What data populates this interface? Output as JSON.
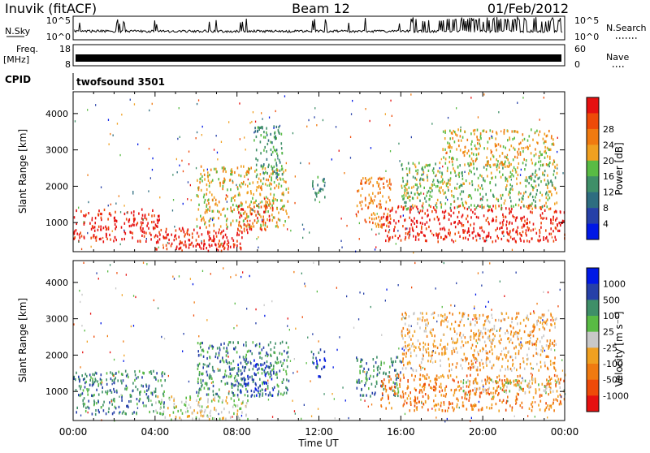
{
  "header": {
    "station": "Inuvik (fitACF)",
    "beam": "Beam 12",
    "date": "01/Feb/2012"
  },
  "status_panels": {
    "nsky_label": "N.Sky",
    "nsky_ticks": [
      "10^5",
      "10^0"
    ],
    "nsearch_label": "N.Search",
    "nsearch_ticks": [
      "10^5",
      "10^0"
    ],
    "freq_label": "Freq.",
    "freq_unit": "[MHz]",
    "freq_ticks": [
      "18",
      "8"
    ],
    "nave_label": "Nave",
    "nave_ticks": [
      "60",
      "0"
    ],
    "cpid_label": "CPID",
    "cpid_value": "twofsound 3501"
  },
  "colors": {
    "power": [
      "#0018e6",
      "#2640a8",
      "#2e6d80",
      "#3f8f68",
      "#59bb44",
      "#f0a020",
      "#f07a10",
      "#ee4a08",
      "#e61010"
    ],
    "velocity": [
      "#e61010",
      "#ee4a08",
      "#f07a10",
      "#f0a020",
      "#c8c8c8",
      "#59bb44",
      "#3f8f68",
      "#2640a8",
      "#0018e6"
    ]
  },
  "chart_data": [
    {
      "type": "heatmap",
      "name": "power",
      "ylabel": "Slant Range [km]",
      "xlabel": "",
      "x_ticks": [
        "00:00",
        "04:00",
        "08:00",
        "12:00",
        "16:00",
        "20:00",
        "00:00"
      ],
      "y_ticks": [
        "1000",
        "2000",
        "3000",
        "4000"
      ],
      "ylim": [
        200,
        4600
      ],
      "xlim_hours": [
        0,
        24
      ],
      "colorbar_label": "Power [dB]",
      "colorbar_ticks": [
        "4",
        "8",
        "12",
        "16",
        "20",
        "24",
        "28"
      ],
      "regions": [
        {
          "t0": 0.0,
          "t1": 4.2,
          "r0": 500,
          "r1": 1400,
          "level": 8
        },
        {
          "t0": 4.0,
          "t1": 8.5,
          "r0": 300,
          "r1": 900,
          "level": 8
        },
        {
          "t0": 5.0,
          "t1": 7.6,
          "r0": 250,
          "r1": 550,
          "level": 8
        },
        {
          "t0": 6.0,
          "t1": 10.5,
          "r0": 900,
          "r1": 2600,
          "level": 5
        },
        {
          "t0": 8.0,
          "t1": 9.8,
          "r0": 800,
          "r1": 1500,
          "level": 7
        },
        {
          "t0": 8.8,
          "t1": 10.2,
          "r0": 2200,
          "r1": 3700,
          "level": 3
        },
        {
          "t0": 11.6,
          "t1": 12.3,
          "r0": 1600,
          "r1": 2300,
          "level": 3
        },
        {
          "t0": 13.8,
          "t1": 15.5,
          "r0": 900,
          "r1": 2300,
          "level": 6
        },
        {
          "t0": 15.0,
          "t1": 24.0,
          "r0": 500,
          "r1": 1500,
          "level": 8
        },
        {
          "t0": 16.0,
          "t1": 23.6,
          "r0": 1400,
          "r1": 2700,
          "level": 4
        },
        {
          "t0": 18.0,
          "t1": 23.5,
          "r0": 2600,
          "r1": 3600,
          "level": 5
        }
      ]
    },
    {
      "type": "heatmap",
      "name": "velocity",
      "ylabel": "Slant Range [km]",
      "xlabel": "Time UT",
      "x_ticks": [
        "00:00",
        "04:00",
        "08:00",
        "12:00",
        "16:00",
        "20:00",
        "00:00"
      ],
      "y_ticks": [
        "1000",
        "2000",
        "3000",
        "4000"
      ],
      "ylim": [
        200,
        4600
      ],
      "xlim_hours": [
        0,
        24
      ],
      "colorbar_label": "Velocity [m s⁻¹]",
      "colorbar_ticks": [
        "1000",
        "500",
        "100",
        "25",
        "-25",
        "-100",
        "-500",
        "-1000"
      ],
      "regions": [
        {
          "t0": 0.0,
          "t1": 4.5,
          "r0": 400,
          "r1": 1600,
          "level": 6
        },
        {
          "t0": 4.0,
          "t1": 8.5,
          "r0": 250,
          "r1": 900,
          "level": 4
        },
        {
          "t0": 6.0,
          "t1": 10.5,
          "r0": 900,
          "r1": 2400,
          "level": 6
        },
        {
          "t0": 8.0,
          "t1": 9.8,
          "r0": 900,
          "r1": 1900,
          "level": 7
        },
        {
          "t0": 11.6,
          "t1": 12.3,
          "r0": 1400,
          "r1": 2200,
          "level": 7
        },
        {
          "t0": 13.8,
          "t1": 16.0,
          "r0": 900,
          "r1": 2000,
          "level": 6
        },
        {
          "t0": 15.0,
          "t1": 24.0,
          "r0": 500,
          "r1": 1500,
          "level": 2
        },
        {
          "t0": 19.0,
          "t1": 23.8,
          "r0": 1000,
          "r1": 1400,
          "level": 4
        },
        {
          "t0": 16.0,
          "t1": 23.6,
          "r0": 1600,
          "r1": 3200,
          "level": 3
        }
      ]
    }
  ]
}
